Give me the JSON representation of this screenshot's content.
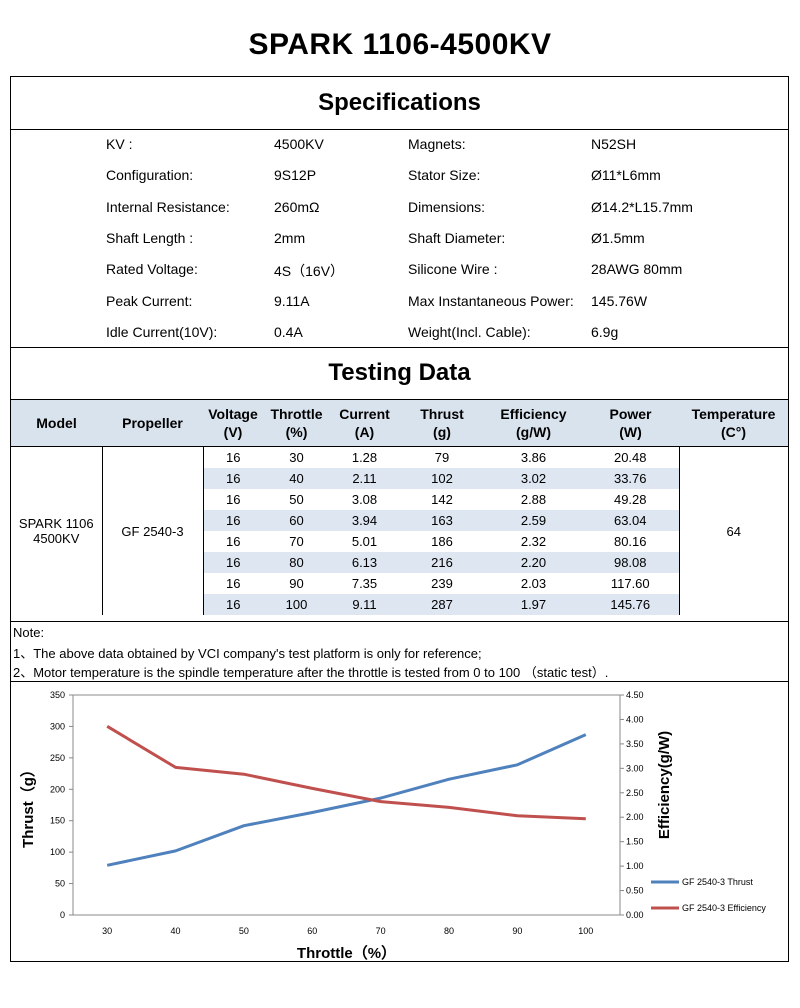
{
  "title": "SPARK 1106-4500KV",
  "specs": {
    "heading": "Specifications",
    "rows": [
      {
        "l1": "KV :",
        "v1": "4500KV",
        "l2": "Magnets:",
        "v2": "N52SH"
      },
      {
        "l1": "Configuration:",
        "v1": "9S12P",
        "l2": "Stator Size:",
        "v2": "Ø11*L6mm"
      },
      {
        "l1": "Internal Resistance:",
        "v1": "260mΩ",
        "l2": "Dimensions:",
        "v2": "Ø14.2*L15.7mm"
      },
      {
        "l1": "Shaft Length :",
        "v1": "2mm",
        "l2": "Shaft Diameter:",
        "v2": "Ø1.5mm"
      },
      {
        "l1": "Rated Voltage:",
        "v1": "4S（16V）",
        "l2": "Silicone Wire :",
        "v2": "28AWG 80mm"
      },
      {
        "l1": "Peak Current:",
        "v1": "9.11A",
        "l2": "Max Instantaneous Power:",
        "v2": "145.76W"
      },
      {
        "l1": "Idle Current(10V):",
        "v1": "0.4A",
        "l2": "Weight(Incl. Cable):",
        "v2": "6.9g"
      }
    ]
  },
  "testing": {
    "heading": "Testing Data",
    "headers": {
      "model": "Model",
      "propeller": "Propeller",
      "voltage": [
        "Voltage",
        "(V)"
      ],
      "throttle": [
        "Throttle",
        "(%)"
      ],
      "current": [
        "Current",
        "(A)"
      ],
      "thrust": [
        "Thrust",
        "(g)"
      ],
      "efficiency": [
        "Efficiency",
        "(g/W)"
      ],
      "power": [
        "Power",
        "(W)"
      ],
      "temperature": [
        "Temperature",
        "(C°)"
      ]
    },
    "model": [
      "SPARK 1106",
      "4500KV"
    ],
    "propeller": "GF 2540-3",
    "temperature": "64",
    "rows": [
      [
        "16",
        "30",
        "1.28",
        "79",
        "3.86",
        "20.48"
      ],
      [
        "16",
        "40",
        "2.11",
        "102",
        "3.02",
        "33.76"
      ],
      [
        "16",
        "50",
        "3.08",
        "142",
        "2.88",
        "49.28"
      ],
      [
        "16",
        "60",
        "3.94",
        "163",
        "2.59",
        "63.04"
      ],
      [
        "16",
        "70",
        "5.01",
        "186",
        "2.32",
        "80.16"
      ],
      [
        "16",
        "80",
        "6.13",
        "216",
        "2.20",
        "98.08"
      ],
      [
        "16",
        "90",
        "7.35",
        "239",
        "2.03",
        "117.60"
      ],
      [
        "16",
        "100",
        "9.11",
        "287",
        "1.97",
        "145.76"
      ]
    ]
  },
  "notes": [
    "Note:",
    "1、The above data obtained by VCI company's test platform is only for reference;",
    "2、Motor temperature is the spindle temperature after the throttle is tested from 0 to 100 （static test）."
  ],
  "chart_data": {
    "type": "line",
    "x": [
      30,
      40,
      50,
      60,
      70,
      80,
      90,
      100
    ],
    "series": [
      {
        "name": "GF 2540-3 Thrust",
        "axis": "left",
        "color": "#4f81bd",
        "values": [
          79,
          102,
          142,
          163,
          186,
          216,
          239,
          287
        ]
      },
      {
        "name": "GF 2540-3 Efficiency",
        "axis": "right",
        "color": "#c0504d",
        "values": [
          3.86,
          3.02,
          2.88,
          2.59,
          2.32,
          2.2,
          2.03,
          1.97
        ]
      }
    ],
    "xlabel": "Throttle（%）",
    "ylabel": "Thrust（g）",
    "y2label": "Efficiency(g/W)",
    "xticks": [
      "30",
      "40",
      "50",
      "60",
      "70",
      "80",
      "90",
      "100"
    ],
    "yticks": [
      "0",
      "50",
      "100",
      "150",
      "200",
      "250",
      "300",
      "350"
    ],
    "y2ticks": [
      "0.00",
      "0.50",
      "1.00",
      "1.50",
      "2.00",
      "2.50",
      "3.00",
      "3.50",
      "4.00",
      "4.50"
    ],
    "ylim": [
      0,
      350
    ],
    "y2lim": [
      0,
      4.5
    ],
    "grid": false,
    "legend": "bottom-right"
  }
}
